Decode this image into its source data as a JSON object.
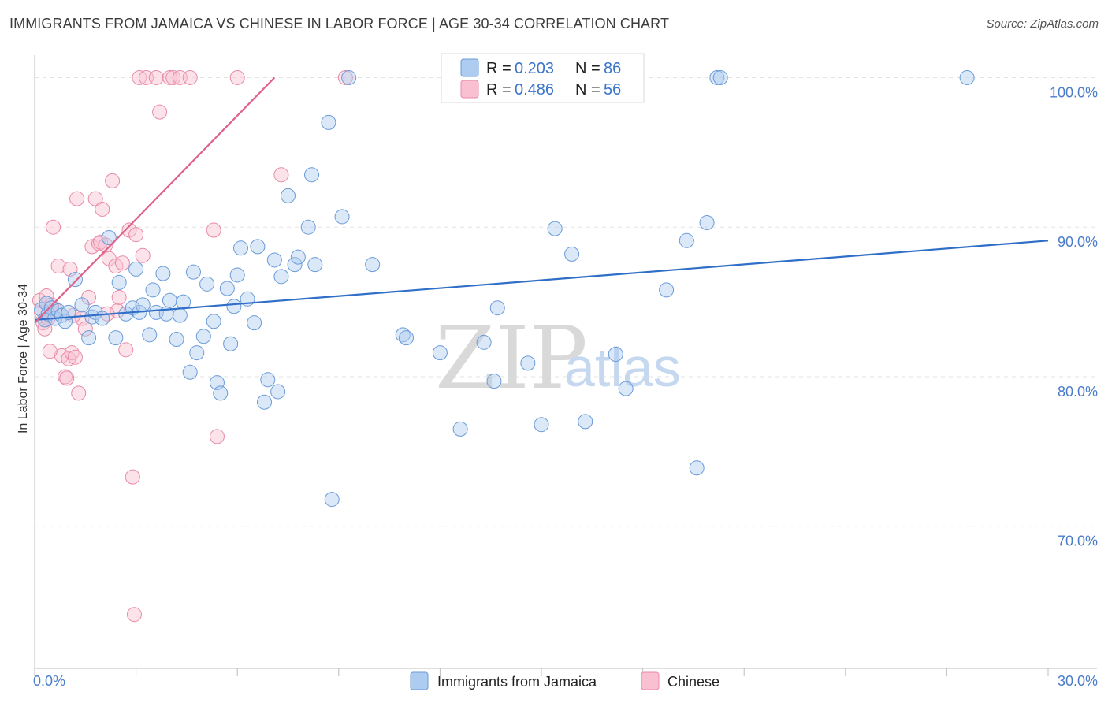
{
  "title": "IMMIGRANTS FROM JAMAICA VS CHINESE IN LABOR FORCE | AGE 30-34 CORRELATION CHART",
  "source": "Source: ZipAtlas.com",
  "watermark": {
    "zip": "ZIP",
    "atlas": "atlas"
  },
  "colors": {
    "jamaica_fill": "#aecbf0",
    "jamaica_stroke": "#6a9bd8",
    "jamaica_line": "#2f6fc8",
    "chinese_fill": "#f8c0d0",
    "chinese_stroke": "#e88aa8",
    "chinese_line": "#e0608a",
    "axis_text": "#4a7cc9",
    "grid": "#e3e3e3"
  },
  "legend": {
    "row1": {
      "r_label": "R = ",
      "r_value": "0.203",
      "n_label": "N = ",
      "n_value": "86"
    },
    "row2": {
      "r_label": "R = ",
      "r_value": "0.486",
      "n_label": "N = ",
      "n_value": "56"
    }
  },
  "bottom_legend": {
    "series1": "Immigrants from Jamaica",
    "series2": "Chinese"
  },
  "chart_data": {
    "type": "scatter",
    "title": "IMMIGRANTS FROM JAMAICA VS CHINESE IN LABOR FORCE | AGE 30-34 CORRELATION CHART",
    "xlabel": "",
    "ylabel": "In Labor Force | Age 30-34",
    "xlim": [
      0,
      30
    ],
    "ylim": [
      60.5,
      101.5
    ],
    "x_tick_labels": [
      {
        "value": 0,
        "label": "0.0%"
      },
      {
        "value": 30,
        "label": "30.0%"
      }
    ],
    "y_tick_labels": [
      {
        "value": 100,
        "label": "100.0%"
      },
      {
        "value": 90,
        "label": "90.0%"
      },
      {
        "value": 80,
        "label": "80.0%"
      },
      {
        "value": 70,
        "label": "70.0%"
      }
    ],
    "series": [
      {
        "name": "Immigrants from Jamaica",
        "R": 0.203,
        "N": 86,
        "trend": {
          "x0": 0,
          "y0": 83.8,
          "x1": 30,
          "y1": 89.1
        },
        "points": [
          [
            0.2,
            84.5
          ],
          [
            0.3,
            83.8
          ],
          [
            0.35,
            84.9
          ],
          [
            0.4,
            84.2
          ],
          [
            0.5,
            84.6
          ],
          [
            0.6,
            83.9
          ],
          [
            0.7,
            84.4
          ],
          [
            0.8,
            84.1
          ],
          [
            0.9,
            83.7
          ],
          [
            1.0,
            84.3
          ],
          [
            1.2,
            86.5
          ],
          [
            1.4,
            84.8
          ],
          [
            1.6,
            82.6
          ],
          [
            1.7,
            84.0
          ],
          [
            1.8,
            84.3
          ],
          [
            2.0,
            83.9
          ],
          [
            2.2,
            89.3
          ],
          [
            2.4,
            82.6
          ],
          [
            2.5,
            86.3
          ],
          [
            2.7,
            84.2
          ],
          [
            2.9,
            84.6
          ],
          [
            3.0,
            87.2
          ],
          [
            3.1,
            84.3
          ],
          [
            3.2,
            84.8
          ],
          [
            3.4,
            82.8
          ],
          [
            3.5,
            85.8
          ],
          [
            3.6,
            84.3
          ],
          [
            3.8,
            86.9
          ],
          [
            3.9,
            84.2
          ],
          [
            4.0,
            85.1
          ],
          [
            4.2,
            82.5
          ],
          [
            4.3,
            84.1
          ],
          [
            4.4,
            85.0
          ],
          [
            4.6,
            80.3
          ],
          [
            4.7,
            87.0
          ],
          [
            4.8,
            81.6
          ],
          [
            5.0,
            82.7
          ],
          [
            5.1,
            86.2
          ],
          [
            5.3,
            83.7
          ],
          [
            5.4,
            79.6
          ],
          [
            5.5,
            78.9
          ],
          [
            5.7,
            85.9
          ],
          [
            5.8,
            82.2
          ],
          [
            5.9,
            84.7
          ],
          [
            6.0,
            86.8
          ],
          [
            6.1,
            88.6
          ],
          [
            6.3,
            85.2
          ],
          [
            6.5,
            83.6
          ],
          [
            6.6,
            88.7
          ],
          [
            6.8,
            78.3
          ],
          [
            6.9,
            79.8
          ],
          [
            7.1,
            87.8
          ],
          [
            7.2,
            79.0
          ],
          [
            7.3,
            86.7
          ],
          [
            7.5,
            92.1
          ],
          [
            7.7,
            87.5
          ],
          [
            7.8,
            88.0
          ],
          [
            8.1,
            90.0
          ],
          [
            8.2,
            93.5
          ],
          [
            8.3,
            87.5
          ],
          [
            8.7,
            97.0
          ],
          [
            8.8,
            71.8
          ],
          [
            9.1,
            90.7
          ],
          [
            9.3,
            100.0
          ],
          [
            10.0,
            87.5
          ],
          [
            10.9,
            82.8
          ],
          [
            11.0,
            82.6
          ],
          [
            12.0,
            81.6
          ],
          [
            12.6,
            76.5
          ],
          [
            13.3,
            82.3
          ],
          [
            13.6,
            79.7
          ],
          [
            13.7,
            84.6
          ],
          [
            14.6,
            80.9
          ],
          [
            15.0,
            76.8
          ],
          [
            15.4,
            89.9
          ],
          [
            15.9,
            88.2
          ],
          [
            16.3,
            77.0
          ],
          [
            17.2,
            81.5
          ],
          [
            17.5,
            79.2
          ],
          [
            18.7,
            85.8
          ],
          [
            19.3,
            89.1
          ],
          [
            19.6,
            73.9
          ],
          [
            19.9,
            90.3
          ],
          [
            20.2,
            100.0
          ],
          [
            20.3,
            100.0
          ],
          [
            27.6,
            100.0
          ]
        ]
      },
      {
        "name": "Chinese",
        "R": 0.486,
        "N": 56,
        "trend": {
          "x0": 0,
          "y0": 83.6,
          "x1": 7.1,
          "y1": 100.0
        },
        "points": [
          [
            0.15,
            85.1
          ],
          [
            0.2,
            84.3
          ],
          [
            0.25,
            83.6
          ],
          [
            0.3,
            83.2
          ],
          [
            0.35,
            85.4
          ],
          [
            0.4,
            83.9
          ],
          [
            0.5,
            84.8
          ],
          [
            0.55,
            90.0
          ],
          [
            0.6,
            84.5
          ],
          [
            0.7,
            87.4
          ],
          [
            0.8,
            81.4
          ],
          [
            0.9,
            80.0
          ],
          [
            0.95,
            79.9
          ],
          [
            1.0,
            81.2
          ],
          [
            1.05,
            87.2
          ],
          [
            1.1,
            81.6
          ],
          [
            1.2,
            81.3
          ],
          [
            1.3,
            78.9
          ],
          [
            1.4,
            83.9
          ],
          [
            1.5,
            83.2
          ],
          [
            1.6,
            85.3
          ],
          [
            1.7,
            88.7
          ],
          [
            1.8,
            91.9
          ],
          [
            1.9,
            88.9
          ],
          [
            1.95,
            89.0
          ],
          [
            2.0,
            91.2
          ],
          [
            2.1,
            88.8
          ],
          [
            2.2,
            87.9
          ],
          [
            2.3,
            93.1
          ],
          [
            2.4,
            87.4
          ],
          [
            2.45,
            84.4
          ],
          [
            2.5,
            85.3
          ],
          [
            2.6,
            87.6
          ],
          [
            2.7,
            81.8
          ],
          [
            2.8,
            89.8
          ],
          [
            2.9,
            73.3
          ],
          [
            2.95,
            64.1
          ],
          [
            3.0,
            89.5
          ],
          [
            3.1,
            100.0
          ],
          [
            3.2,
            88.1
          ],
          [
            3.3,
            100.0
          ],
          [
            3.6,
            100.0
          ],
          [
            3.7,
            97.7
          ],
          [
            4.0,
            100.0
          ],
          [
            4.1,
            100.0
          ],
          [
            4.3,
            100.0
          ],
          [
            4.6,
            100.0
          ],
          [
            5.3,
            89.8
          ],
          [
            5.4,
            76.0
          ],
          [
            6.0,
            100.0
          ],
          [
            7.3,
            93.5
          ],
          [
            9.2,
            100.0
          ],
          [
            1.15,
            84.1
          ],
          [
            1.25,
            91.9
          ],
          [
            0.45,
            81.7
          ],
          [
            2.15,
            84.2
          ]
        ]
      }
    ]
  }
}
